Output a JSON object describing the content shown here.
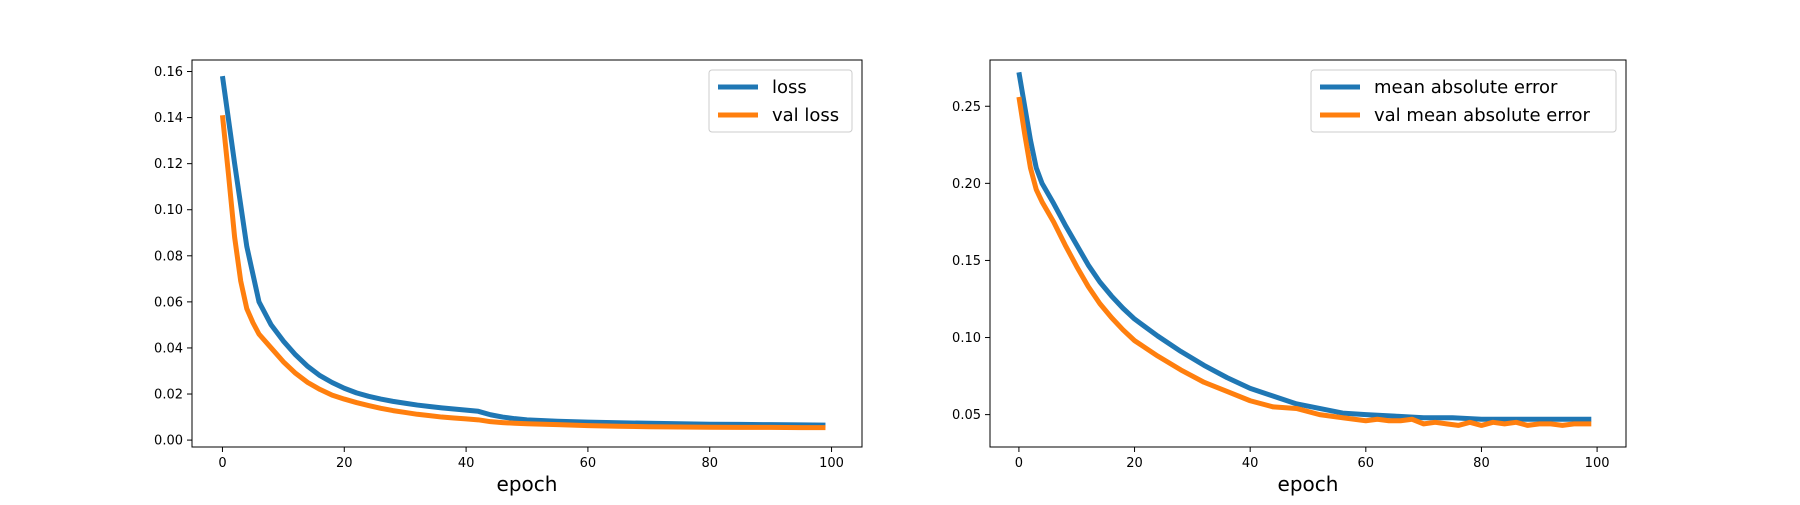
{
  "colors": {
    "loss": "#1f77b4",
    "val": "#ff7f0e"
  },
  "chart_data": [
    {
      "type": "line",
      "title": "",
      "xlabel": "epoch",
      "ylabel": "",
      "xlim": [
        -5,
        105
      ],
      "ylim": [
        -0.003,
        0.165
      ],
      "xticks": [
        0,
        20,
        40,
        60,
        80,
        100
      ],
      "xtick_labels": [
        "0",
        "20",
        "40",
        "60",
        "80",
        "100"
      ],
      "yticks": [
        0.0,
        0.02,
        0.04,
        0.06,
        0.08,
        0.1,
        0.12,
        0.14,
        0.16
      ],
      "ytick_labels": [
        "0.00",
        "0.02",
        "0.04",
        "0.06",
        "0.08",
        "0.10",
        "0.12",
        "0.14",
        "0.16"
      ],
      "grid": false,
      "legend_position": "top-right",
      "series": [
        {
          "name": "loss",
          "color": "#1f77b4",
          "x": [
            0,
            2,
            4,
            6,
            8,
            10,
            12,
            14,
            16,
            18,
            20,
            22,
            24,
            26,
            28,
            30,
            32,
            34,
            36,
            38,
            40,
            42,
            44,
            46,
            48,
            50,
            55,
            60,
            65,
            70,
            75,
            80,
            85,
            90,
            95,
            99
          ],
          "y": [
            0.158,
            0.12,
            0.084,
            0.06,
            0.05,
            0.043,
            0.037,
            0.032,
            0.028,
            0.025,
            0.0225,
            0.0205,
            0.019,
            0.0178,
            0.0168,
            0.016,
            0.0152,
            0.0146,
            0.014,
            0.0135,
            0.013,
            0.0125,
            0.011,
            0.01,
            0.0093,
            0.0088,
            0.0082,
            0.0078,
            0.0075,
            0.0073,
            0.0071,
            0.0069,
            0.0068,
            0.0067,
            0.0066,
            0.0065
          ]
        },
        {
          "name": "val loss",
          "color": "#ff7f0e",
          "x": [
            0,
            1,
            2,
            3,
            4,
            5,
            6,
            8,
            10,
            12,
            14,
            16,
            18,
            20,
            22,
            24,
            26,
            28,
            30,
            32,
            34,
            36,
            38,
            40,
            42,
            44,
            46,
            48,
            50,
            55,
            60,
            65,
            70,
            75,
            80,
            85,
            90,
            95,
            99
          ],
          "y": [
            0.141,
            0.115,
            0.088,
            0.069,
            0.057,
            0.051,
            0.046,
            0.04,
            0.034,
            0.029,
            0.025,
            0.022,
            0.0195,
            0.0178,
            0.0163,
            0.015,
            0.0138,
            0.0128,
            0.012,
            0.0112,
            0.0106,
            0.01,
            0.0096,
            0.0092,
            0.0088,
            0.008,
            0.0076,
            0.0073,
            0.0071,
            0.0067,
            0.0063,
            0.006,
            0.0058,
            0.0057,
            0.0056,
            0.0055,
            0.0055,
            0.0054,
            0.0054
          ]
        }
      ]
    },
    {
      "type": "line",
      "title": "",
      "xlabel": "epoch",
      "ylabel": "",
      "xlim": [
        -5,
        105
      ],
      "ylim": [
        0.029,
        0.28
      ],
      "xticks": [
        0,
        20,
        40,
        60,
        80,
        100
      ],
      "xtick_labels": [
        "0",
        "20",
        "40",
        "60",
        "80",
        "100"
      ],
      "yticks": [
        0.05,
        0.1,
        0.15,
        0.2,
        0.25
      ],
      "ytick_labels": [
        "0.05",
        "0.10",
        "0.15",
        "0.20",
        "0.25"
      ],
      "grid": false,
      "legend_position": "top-right",
      "series": [
        {
          "name": "mean absolute error",
          "color": "#1f77b4",
          "x": [
            0,
            1,
            2,
            3,
            4,
            6,
            8,
            10,
            12,
            14,
            16,
            18,
            20,
            24,
            28,
            32,
            36,
            40,
            44,
            48,
            52,
            56,
            60,
            65,
            70,
            75,
            80,
            85,
            90,
            95,
            99
          ],
          "y": [
            0.272,
            0.25,
            0.228,
            0.21,
            0.2,
            0.187,
            0.173,
            0.16,
            0.147,
            0.136,
            0.127,
            0.119,
            0.112,
            0.101,
            0.091,
            0.082,
            0.074,
            0.067,
            0.062,
            0.057,
            0.054,
            0.051,
            0.05,
            0.049,
            0.048,
            0.048,
            0.047,
            0.047,
            0.047,
            0.047,
            0.047
          ]
        },
        {
          "name": "val mean absolute error",
          "color": "#ff7f0e",
          "x": [
            0,
            1,
            2,
            3,
            4,
            6,
            8,
            10,
            12,
            14,
            16,
            18,
            20,
            24,
            28,
            32,
            36,
            40,
            44,
            48,
            52,
            56,
            60,
            62,
            64,
            66,
            68,
            70,
            72,
            74,
            76,
            78,
            80,
            82,
            84,
            86,
            88,
            90,
            92,
            94,
            96,
            99
          ],
          "y": [
            0.256,
            0.232,
            0.21,
            0.196,
            0.188,
            0.175,
            0.16,
            0.146,
            0.133,
            0.122,
            0.113,
            0.105,
            0.098,
            0.088,
            0.079,
            0.071,
            0.065,
            0.059,
            0.055,
            0.054,
            0.05,
            0.048,
            0.046,
            0.047,
            0.046,
            0.046,
            0.047,
            0.044,
            0.045,
            0.044,
            0.043,
            0.045,
            0.043,
            0.045,
            0.044,
            0.045,
            0.043,
            0.044,
            0.044,
            0.043,
            0.044,
            0.044
          ]
        }
      ]
    }
  ]
}
